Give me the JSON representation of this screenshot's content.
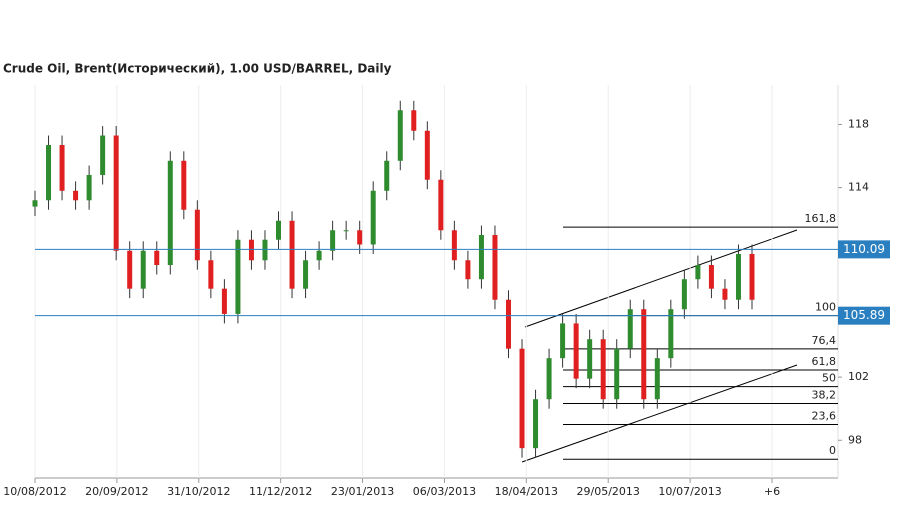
{
  "chart_data": {
    "type": "candlestick",
    "title": "Crude Oil, Brent(Исторический), 1.00 USD/BARREL, Daily",
    "x_tick_labels": [
      "10/08/2012",
      "20/09/2012",
      "31/10/2012",
      "11/12/2012",
      "23/01/2013",
      "06/03/2013",
      "18/04/2013",
      "29/05/2013",
      "10/07/2013",
      "+6"
    ],
    "open": [
      112.8,
      113.2,
      116.7,
      113.8,
      113.2,
      114.8,
      117.3,
      110,
      107.6,
      110,
      109.1,
      115.7,
      112.6,
      109.4,
      107.6,
      106,
      110.7,
      109.4,
      110.7,
      111.9,
      107.6,
      109.4,
      110,
      111.3,
      111.3,
      110.4,
      113.8,
      115.7,
      118.9,
      117.6,
      114.5,
      111.3,
      109.4,
      108.2,
      111,
      106.9,
      103.8,
      97.5,
      100.6,
      103.2,
      105.4,
      101.9,
      104.4,
      100.6,
      103.8,
      106.3,
      100.6,
      103.2,
      106.3,
      108.2,
      109.1,
      107.6,
      106.9,
      109.8
    ],
    "high": [
      113.8,
      117.3,
      117.3,
      114.4,
      115.4,
      117.9,
      117.9,
      110.6,
      110.6,
      110.6,
      116.3,
      116.3,
      113.2,
      110,
      108.2,
      111.3,
      111.3,
      111.3,
      112.5,
      112.5,
      110,
      110.6,
      111.9,
      111.9,
      111.9,
      114.4,
      116.3,
      119.5,
      119.5,
      118.2,
      115.1,
      111.9,
      110,
      111.6,
      111.6,
      107.5,
      104.4,
      101.2,
      103.8,
      106,
      106,
      105,
      105,
      104.4,
      106.9,
      106.9,
      103.8,
      106.9,
      108.8,
      109.7,
      109.7,
      108.2,
      110.4,
      110.4
    ],
    "low": [
      112.2,
      112.6,
      113.2,
      112.6,
      112.6,
      114.2,
      109.4,
      107,
      107,
      108.5,
      108.5,
      112,
      108.8,
      107,
      105.4,
      105.4,
      108.8,
      108.8,
      110.1,
      107,
      107,
      108.8,
      109.4,
      110.7,
      109.8,
      109.8,
      113.2,
      115.1,
      117,
      113.9,
      110.7,
      108.8,
      107.6,
      107.6,
      106.3,
      103.2,
      96.9,
      96.9,
      100,
      102.6,
      101.3,
      101.3,
      100,
      100,
      103.2,
      100,
      100,
      102.6,
      105.7,
      107.6,
      107,
      106.3,
      106.3,
      106.3
    ],
    "close": [
      113.2,
      116.7,
      113.8,
      113.2,
      114.8,
      117.3,
      110,
      107.6,
      110,
      109.1,
      115.7,
      112.6,
      109.4,
      107.6,
      106,
      110.7,
      109.4,
      110.7,
      111.9,
      107.6,
      109.4,
      110,
      111.3,
      111.3,
      110.4,
      113.8,
      115.7,
      118.9,
      117.6,
      114.5,
      111.3,
      109.4,
      108.2,
      111,
      106.9,
      103.8,
      97.5,
      100.6,
      103.2,
      105.4,
      101.9,
      104.4,
      100.6,
      103.8,
      106.3,
      100.6,
      103.2,
      106.3,
      108.2,
      109.1,
      107.6,
      106.9,
      109.8,
      106.9
    ],
    "up_color": "#2e8b2e",
    "down_color": "#e02020",
    "ylim": [
      95.8,
      120.5
    ],
    "yticks": [
      98,
      102,
      114,
      118
    ],
    "price_lines": [
      {
        "value": 110.09,
        "color": "#2a7fc0"
      },
      {
        "value": 105.89,
        "color": "#2a7fc0"
      }
    ],
    "fib_levels": [
      {
        "level": "161,8",
        "price": 111.5
      },
      {
        "level": "100",
        "price": 105.89
      },
      {
        "level": "76,4",
        "price": 103.79
      },
      {
        "level": "61,8",
        "price": 102.45
      },
      {
        "level": "50",
        "price": 101.4
      },
      {
        "level": "38,2",
        "price": 100.33
      },
      {
        "level": "23,6",
        "price": 99.0
      },
      {
        "level": "0",
        "price": 96.8
      }
    ]
  }
}
